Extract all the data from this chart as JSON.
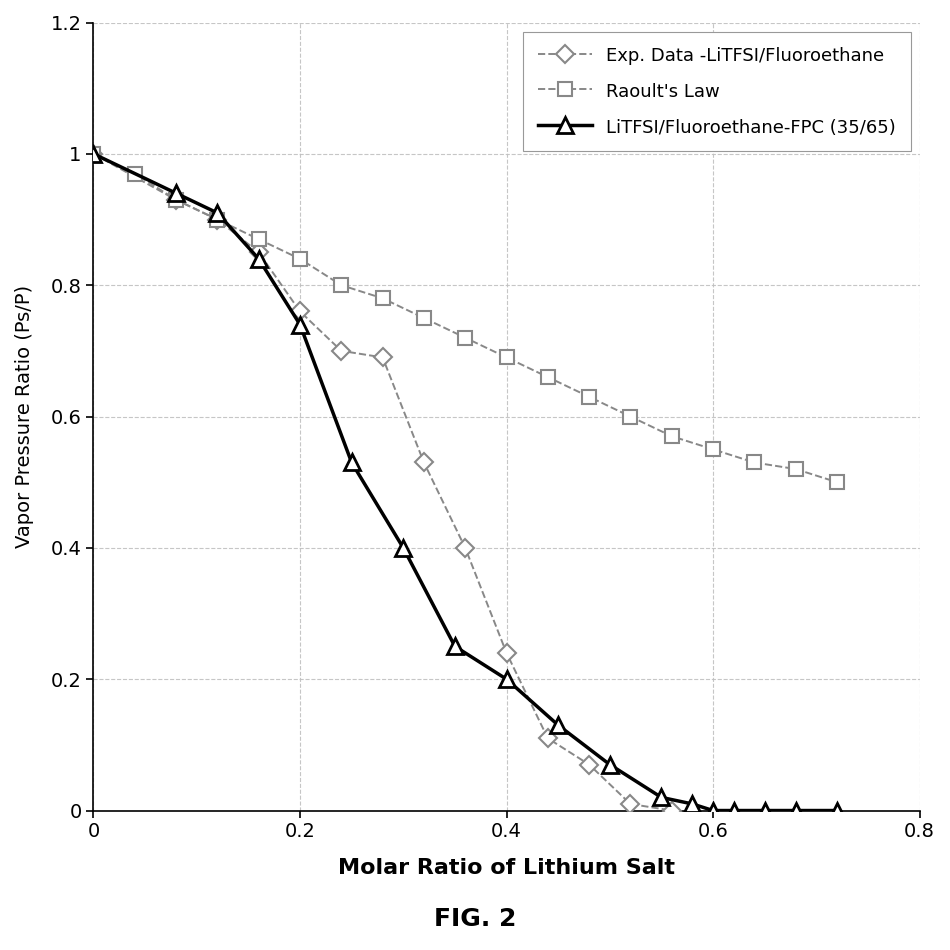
{
  "exp_data_x": [
    0.0,
    0.08,
    0.12,
    0.16,
    0.2,
    0.24,
    0.28,
    0.32,
    0.36,
    0.4,
    0.44,
    0.48,
    0.52,
    0.56
  ],
  "exp_data_y": [
    1.0,
    0.93,
    0.9,
    0.85,
    0.76,
    0.7,
    0.69,
    0.53,
    0.4,
    0.24,
    0.11,
    0.07,
    0.01,
    0.0
  ],
  "raoult_x": [
    0.0,
    0.04,
    0.08,
    0.12,
    0.16,
    0.2,
    0.24,
    0.28,
    0.32,
    0.36,
    0.4,
    0.44,
    0.48,
    0.52,
    0.56,
    0.6,
    0.64,
    0.68,
    0.72
  ],
  "raoult_y": [
    1.0,
    0.97,
    0.93,
    0.9,
    0.87,
    0.84,
    0.8,
    0.78,
    0.75,
    0.72,
    0.69,
    0.66,
    0.63,
    0.6,
    0.57,
    0.55,
    0.53,
    0.52,
    0.5
  ],
  "fpc_x": [
    0.0,
    0.08,
    0.12,
    0.16,
    0.2,
    0.25,
    0.3,
    0.35,
    0.4,
    0.45,
    0.5,
    0.55,
    0.58,
    0.6,
    0.62,
    0.65,
    0.68,
    0.72
  ],
  "fpc_y": [
    1.0,
    0.94,
    0.91,
    0.84,
    0.74,
    0.53,
    0.4,
    0.25,
    0.2,
    0.13,
    0.07,
    0.02,
    0.01,
    0.0,
    0.0,
    0.0,
    0.0,
    0.0
  ],
  "exp_label": "Exp. Data -LiTFSI/Fluoroethane",
  "raoult_label": "Raoult's Law",
  "fpc_label": "LiTFSI/Fluoroethane-FPC (35/65)",
  "xlabel": "Molar Ratio of Lithium Salt",
  "ylabel": "Vapor Pressure Ratio (Ps/P)",
  "fig_label": "FIG. 2",
  "xlim": [
    0,
    0.8
  ],
  "ylim": [
    0.0,
    1.2
  ],
  "xticks": [
    0,
    0.2,
    0.4,
    0.6,
    0.8
  ],
  "yticks": [
    0,
    0.2,
    0.4,
    0.6,
    0.8,
    1.0,
    1.2
  ],
  "exp_color": "#888888",
  "raoult_color": "#888888",
  "fpc_color": "#000000",
  "background_color": "#ffffff",
  "grid_color": "#c0c0c0"
}
